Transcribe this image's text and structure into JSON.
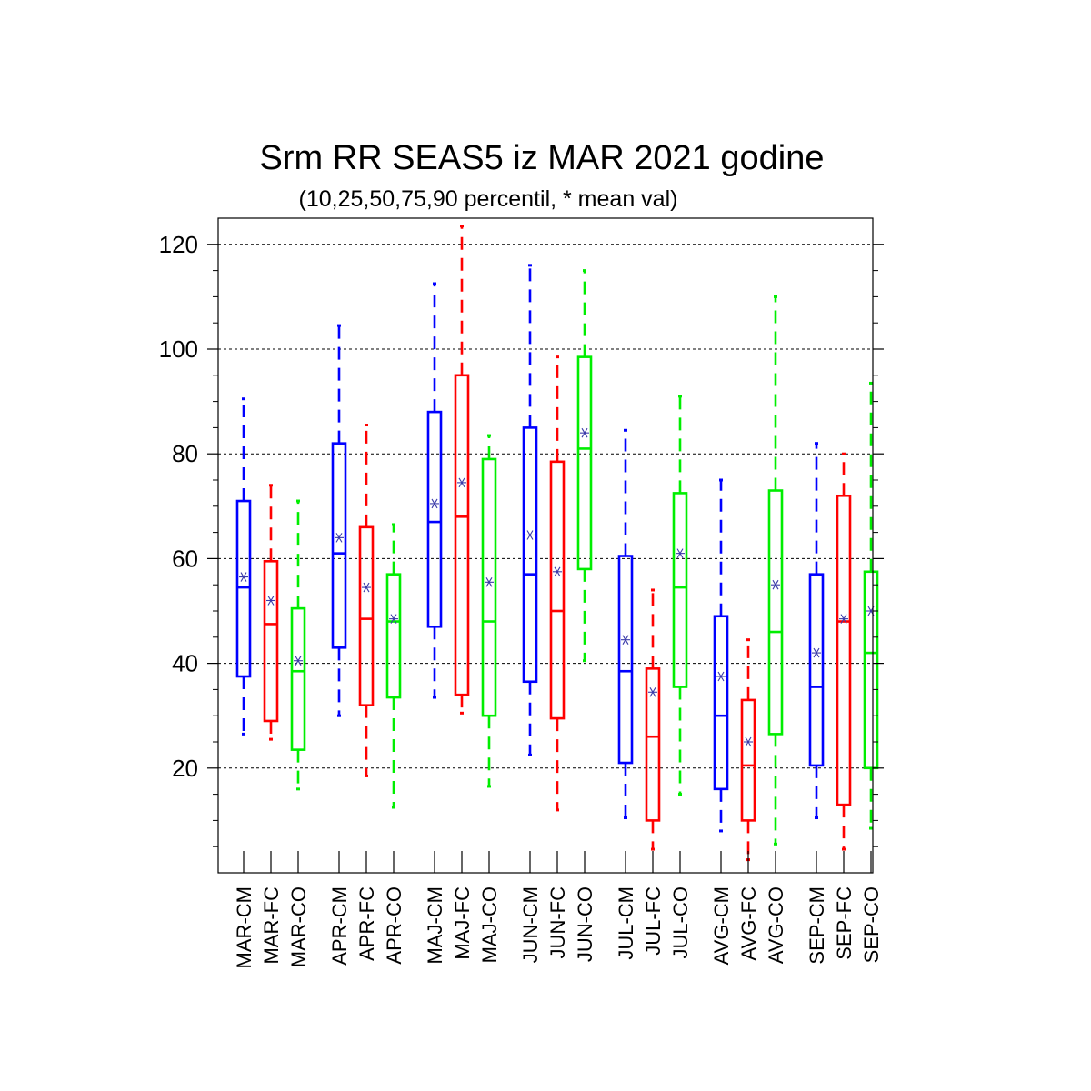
{
  "chart_data": {
    "type": "boxplot",
    "title": "Srm RR SEAS5 iz MAR 2021 godine",
    "subtitle": "(10,25,50,75,90 percentil, * mean val)",
    "ylim": [
      0,
      125
    ],
    "yticks": [
      20,
      40,
      60,
      80,
      100,
      120
    ],
    "grid": true,
    "colors": {
      "CM": "#0000ff",
      "FC": "#ff0000",
      "CO": "#00ee00",
      "mean": "#3a3aa8"
    },
    "categories": [
      "MAR-CM",
      "MAR-FC",
      "MAR-CO",
      "APR-CM",
      "APR-FC",
      "APR-CO",
      "MAJ-CM",
      "MAJ-FC",
      "MAJ-CO",
      "JUN-CM",
      "JUN-FC",
      "JUN-CO",
      "JUL-CM",
      "JUL-FC",
      "JUL-CO",
      "AVG-CM",
      "AVG-FC",
      "AVG-CO",
      "SEP-CM",
      "SEP-FC",
      "SEP-CO"
    ],
    "boxes": [
      {
        "p10": 26.5,
        "p25": 37.5,
        "median": 54.5,
        "p75": 71.0,
        "p90": 90.5,
        "mean": 56.5
      },
      {
        "p10": 25.5,
        "p25": 29.0,
        "median": 47.5,
        "p75": 59.5,
        "p90": 74.0,
        "mean": 52.0
      },
      {
        "p10": 16.0,
        "p25": 23.5,
        "median": 38.5,
        "p75": 50.5,
        "p90": 71.0,
        "mean": 40.5
      },
      {
        "p10": 30.0,
        "p25": 43.0,
        "median": 61.0,
        "p75": 82.0,
        "p90": 104.5,
        "mean": 64.0
      },
      {
        "p10": 18.5,
        "p25": 32.0,
        "median": 48.5,
        "p75": 66.0,
        "p90": 85.5,
        "mean": 54.5
      },
      {
        "p10": 12.5,
        "p25": 33.5,
        "median": 48.0,
        "p75": 57.0,
        "p90": 66.5,
        "mean": 48.5
      },
      {
        "p10": 33.5,
        "p25": 47.0,
        "median": 67.0,
        "p75": 88.0,
        "p90": 112.5,
        "mean": 70.5
      },
      {
        "p10": 30.5,
        "p25": 34.0,
        "median": 68.0,
        "p75": 95.0,
        "p90": 123.5,
        "mean": 74.5
      },
      {
        "p10": 16.5,
        "p25": 30.0,
        "median": 48.0,
        "p75": 79.0,
        "p90": 83.5,
        "mean": 55.5
      },
      {
        "p10": 22.5,
        "p25": 36.5,
        "median": 57.0,
        "p75": 85.0,
        "p90": 116.0,
        "mean": 64.5
      },
      {
        "p10": 12.0,
        "p25": 29.5,
        "median": 50.0,
        "p75": 78.5,
        "p90": 98.5,
        "mean": 57.5
      },
      {
        "p10": 40.5,
        "p25": 58.0,
        "median": 81.0,
        "p75": 98.5,
        "p90": 115.0,
        "mean": 84.0
      },
      {
        "p10": 10.5,
        "p25": 21.0,
        "median": 38.5,
        "p75": 60.5,
        "p90": 84.5,
        "mean": 44.5
      },
      {
        "p10": 4.5,
        "p25": 10.0,
        "median": 26.0,
        "p75": 39.0,
        "p90": 54.0,
        "mean": 34.5
      },
      {
        "p10": 15.0,
        "p25": 35.5,
        "median": 54.5,
        "p75": 72.5,
        "p90": 91.0,
        "mean": 61.0
      },
      {
        "p10": 8.0,
        "p25": 16.0,
        "median": 30.0,
        "p75": 49.0,
        "p90": 75.0,
        "mean": 37.5
      },
      {
        "p10": 2.5,
        "p25": 10.0,
        "median": 20.5,
        "p75": 33.0,
        "p90": 44.5,
        "mean": 25.0
      },
      {
        "p10": 5.5,
        "p25": 26.5,
        "median": 46.0,
        "p75": 73.0,
        "p90": 110.0,
        "mean": 55.0
      },
      {
        "p10": 10.5,
        "p25": 20.5,
        "median": 35.5,
        "p75": 57.0,
        "p90": 82.0,
        "mean": 42.0
      },
      {
        "p10": 4.5,
        "p25": 13.0,
        "median": 48.0,
        "p75": 72.0,
        "p90": 80.0,
        "mean": 48.5
      },
      {
        "p10": 8.5,
        "p25": 20.0,
        "median": 42.0,
        "p75": 57.5,
        "p90": 93.5,
        "mean": 50.0
      }
    ]
  }
}
